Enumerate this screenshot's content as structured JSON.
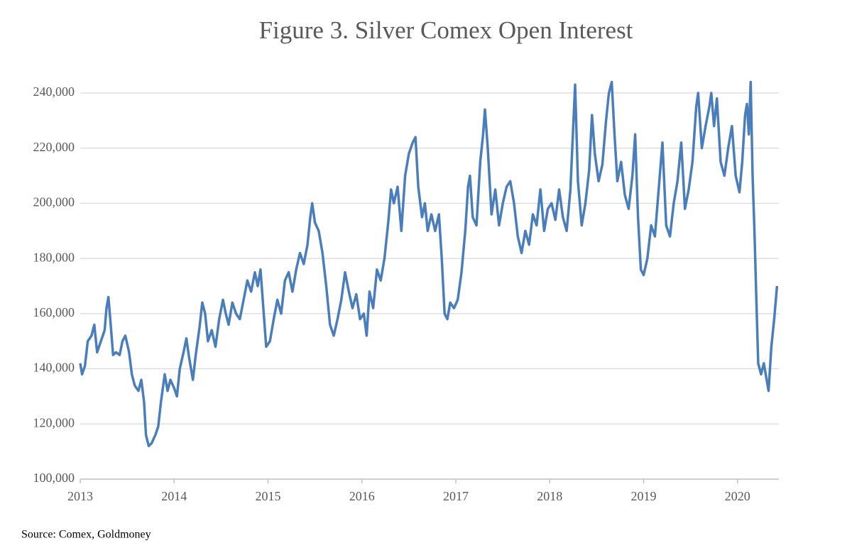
{
  "chart_data": {
    "type": "line",
    "title": "Figure 3. Silver Comex Open Interest",
    "source": "Source: Comex, Goldmoney",
    "xlim": [
      2013,
      2020.44
    ],
    "xticks": [
      2013,
      2014,
      2015,
      2016,
      2017,
      2018,
      2019,
      2020
    ],
    "ylim": [
      100000,
      240000
    ],
    "yticks": [
      {
        "value": 100000,
        "label": "100,000"
      },
      {
        "value": 120000,
        "label": "120,000"
      },
      {
        "value": 140000,
        "label": "140,000"
      },
      {
        "value": 160000,
        "label": "160,000"
      },
      {
        "value": 180000,
        "label": "180,000"
      },
      {
        "value": 200000,
        "label": "200,000"
      },
      {
        "value": 220000,
        "label": "220,000"
      },
      {
        "value": 240000,
        "label": "240,000"
      }
    ],
    "grid": true,
    "x": [
      2013.0,
      2013.02,
      2013.05,
      2013.08,
      2013.12,
      2013.15,
      2013.18,
      2013.22,
      2013.26,
      2013.28,
      2013.3,
      2013.32,
      2013.35,
      2013.38,
      2013.42,
      2013.45,
      2013.48,
      2013.52,
      2013.55,
      2013.58,
      2013.62,
      2013.65,
      2013.68,
      2013.7,
      2013.73,
      2013.76,
      2013.8,
      2013.83,
      2013.86,
      2013.9,
      2013.93,
      2013.96,
      2014.0,
      2014.03,
      2014.06,
      2014.1,
      2014.13,
      2014.16,
      2014.2,
      2014.23,
      2014.27,
      2014.3,
      2014.33,
      2014.36,
      2014.4,
      2014.44,
      2014.48,
      2014.52,
      2014.55,
      2014.58,
      2014.62,
      2014.66,
      2014.7,
      2014.74,
      2014.78,
      2014.82,
      2014.86,
      2014.89,
      2014.92,
      2014.95,
      2014.98,
      2015.02,
      2015.06,
      2015.1,
      2015.14,
      2015.18,
      2015.22,
      2015.26,
      2015.3,
      2015.34,
      2015.38,
      2015.42,
      2015.45,
      2015.47,
      2015.5,
      2015.54,
      2015.58,
      2015.62,
      2015.66,
      2015.7,
      2015.74,
      2015.78,
      2015.82,
      2015.86,
      2015.9,
      2015.94,
      2015.98,
      2016.02,
      2016.05,
      2016.08,
      2016.12,
      2016.16,
      2016.2,
      2016.24,
      2016.28,
      2016.31,
      2016.34,
      2016.38,
      2016.42,
      2016.46,
      2016.5,
      2016.54,
      2016.57,
      2016.6,
      2016.64,
      2016.67,
      2016.7,
      2016.74,
      2016.78,
      2016.82,
      2016.85,
      2016.88,
      2016.91,
      2016.94,
      2016.98,
      2017.02,
      2017.06,
      2017.1,
      2017.13,
      2017.15,
      2017.18,
      2017.22,
      2017.26,
      2017.29,
      2017.31,
      2017.34,
      2017.38,
      2017.42,
      2017.46,
      2017.5,
      2017.54,
      2017.58,
      2017.62,
      2017.66,
      2017.7,
      2017.74,
      2017.78,
      2017.82,
      2017.86,
      2017.9,
      2017.94,
      2017.98,
      2018.02,
      2018.06,
      2018.1,
      2018.14,
      2018.18,
      2018.22,
      2018.25,
      2018.27,
      2018.3,
      2018.34,
      2018.38,
      2018.42,
      2018.45,
      2018.48,
      2018.52,
      2018.56,
      2018.6,
      2018.63,
      2018.66,
      2018.69,
      2018.72,
      2018.76,
      2018.8,
      2018.84,
      2018.88,
      2018.91,
      2018.94,
      2018.97,
      2019.0,
      2019.04,
      2019.08,
      2019.12,
      2019.16,
      2019.2,
      2019.24,
      2019.28,
      2019.32,
      2019.36,
      2019.4,
      2019.44,
      2019.48,
      2019.52,
      2019.56,
      2019.58,
      2019.62,
      2019.66,
      2019.7,
      2019.72,
      2019.75,
      2019.78,
      2019.82,
      2019.86,
      2019.9,
      2019.94,
      2019.98,
      2020.02,
      2020.05,
      2020.08,
      2020.1,
      2020.12,
      2020.14,
      2020.16,
      2020.18,
      2020.2,
      2020.22,
      2020.25,
      2020.28,
      2020.31,
      2020.33,
      2020.36,
      2020.39,
      2020.42
    ],
    "series": [
      {
        "color": "#4a7ebb",
        "values": [
          142000,
          138000,
          141000,
          150000,
          152000,
          156000,
          146000,
          150000,
          154000,
          162000,
          166000,
          158000,
          145000,
          146000,
          145000,
          150000,
          152000,
          146000,
          138000,
          134000,
          132000,
          136000,
          128000,
          116000,
          112000,
          113000,
          116000,
          119000,
          128000,
          138000,
          132000,
          136000,
          133000,
          130000,
          140000,
          146000,
          151000,
          144000,
          136000,
          145000,
          155000,
          164000,
          160000,
          150000,
          154000,
          148000,
          158000,
          165000,
          160000,
          156000,
          164000,
          160000,
          158000,
          165000,
          172000,
          168000,
          175000,
          170000,
          176000,
          162000,
          148000,
          150000,
          158000,
          165000,
          160000,
          172000,
          175000,
          168000,
          176000,
          182000,
          178000,
          185000,
          195000,
          200000,
          193000,
          190000,
          182000,
          170000,
          156000,
          152000,
          158000,
          165000,
          175000,
          168000,
          162000,
          167000,
          158000,
          160000,
          152000,
          168000,
          162000,
          176000,
          172000,
          180000,
          193000,
          205000,
          200000,
          206000,
          190000,
          210000,
          218000,
          222000,
          224000,
          206000,
          195000,
          200000,
          190000,
          196000,
          190000,
          196000,
          180000,
          160000,
          158000,
          164000,
          162000,
          165000,
          175000,
          190000,
          206000,
          210000,
          195000,
          192000,
          215000,
          225000,
          234000,
          220000,
          196000,
          205000,
          192000,
          200000,
          206000,
          208000,
          200000,
          188000,
          182000,
          190000,
          185000,
          196000,
          192000,
          205000,
          190000,
          198000,
          200000,
          194000,
          205000,
          195000,
          190000,
          205000,
          228000,
          243000,
          208000,
          192000,
          200000,
          212000,
          232000,
          218000,
          208000,
          214000,
          230000,
          240000,
          244000,
          225000,
          208000,
          215000,
          203000,
          198000,
          210000,
          225000,
          195000,
          176000,
          174000,
          180000,
          192000,
          188000,
          205000,
          222000,
          192000,
          188000,
          200000,
          208000,
          222000,
          198000,
          205000,
          215000,
          235000,
          240000,
          220000,
          228000,
          235000,
          240000,
          228000,
          238000,
          215000,
          210000,
          220000,
          228000,
          210000,
          204000,
          215000,
          232000,
          236000,
          225000,
          244000,
          210000,
          190000,
          165000,
          142000,
          138000,
          142000,
          136000,
          132000,
          148000,
          158000,
          170000
        ]
      }
    ]
  }
}
